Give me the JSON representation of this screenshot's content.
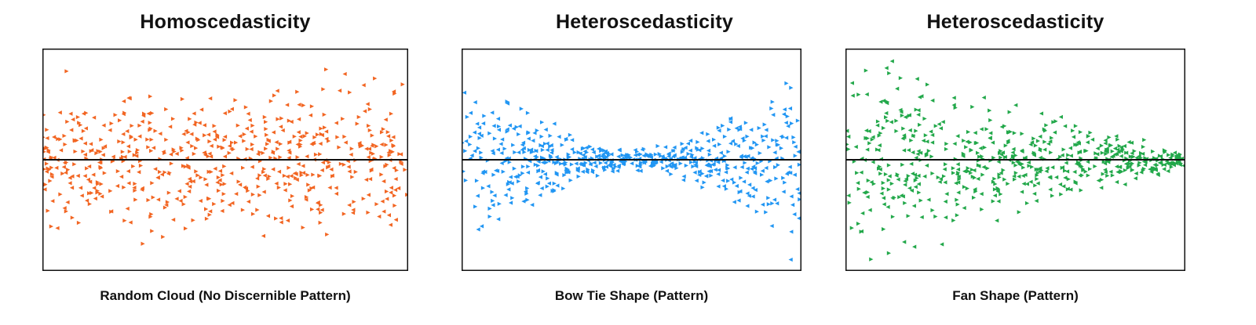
{
  "chart_data": [
    {
      "type": "scatter",
      "title": "Homoscedasticity",
      "caption": "Random Cloud (No Discernible Pattern)",
      "color": "#f26522",
      "pattern": "random-cloud",
      "point_count": 600,
      "xlim": [
        0,
        1
      ],
      "ylim": [
        -1,
        1
      ],
      "reference_line_y": 0,
      "grid": false,
      "legend": "none"
    },
    {
      "type": "scatter",
      "title": "Heteroscedasticity",
      "caption": "Bow Tie Shape (Pattern)",
      "color": "#2196f3",
      "pattern": "bow-tie",
      "point_count": 600,
      "xlim": [
        0,
        1
      ],
      "ylim": [
        -1,
        1
      ],
      "reference_line_y": 0,
      "grid": false,
      "legend": "none"
    },
    {
      "type": "scatter",
      "title": "Heteroscedasticity",
      "caption": "Fan Shape (Pattern)",
      "color": "#22a84a",
      "pattern": "fan",
      "point_count": 600,
      "xlim": [
        0,
        1
      ],
      "ylim": [
        -1,
        1
      ],
      "reference_line_y": 0,
      "grid": false,
      "legend": "none"
    }
  ]
}
